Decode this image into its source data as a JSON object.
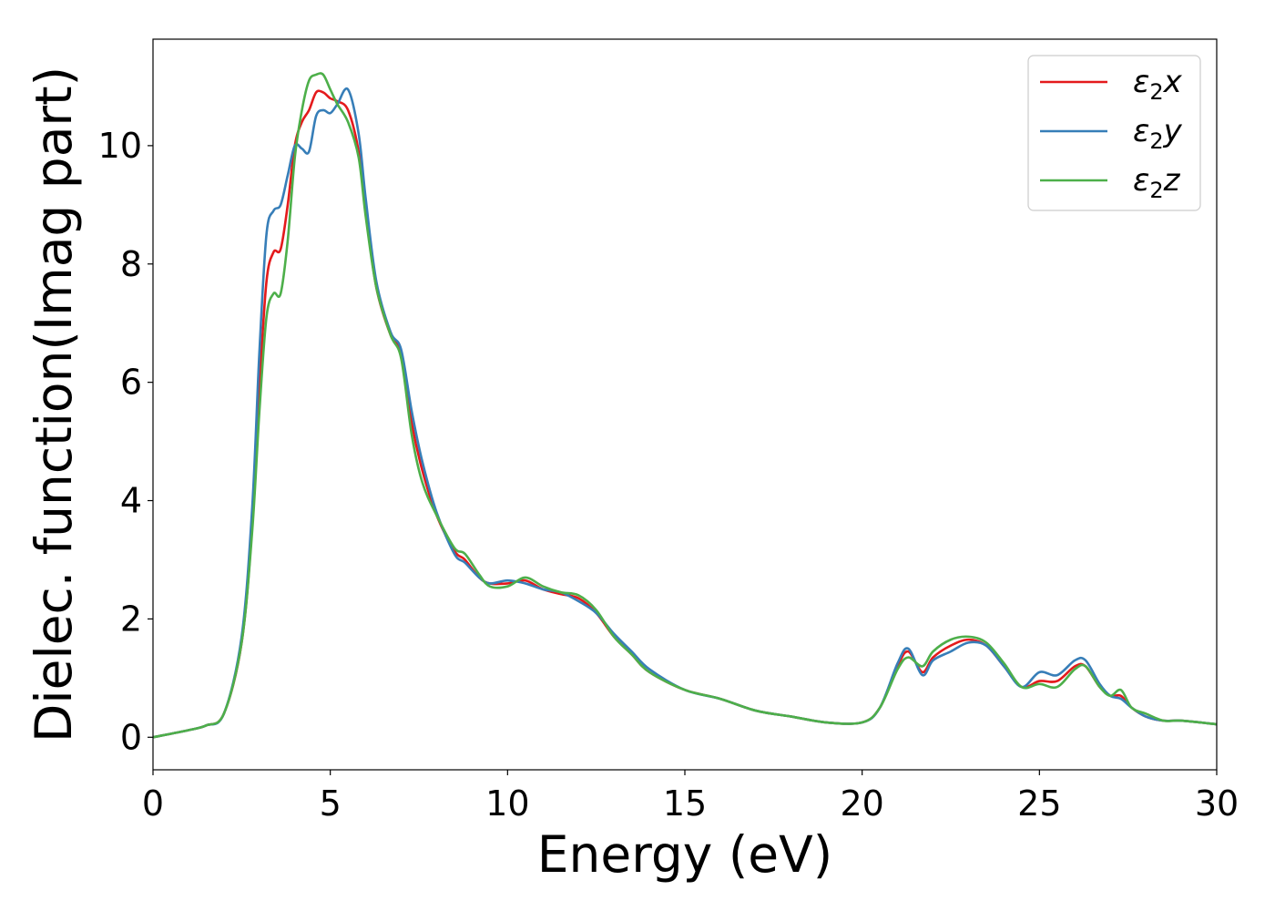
{
  "chart_data": {
    "type": "line",
    "xlabel": "Energy (eV)",
    "ylabel": "Dielec. function(Imag part)",
    "xlim": [
      0,
      30
    ],
    "ylim": [
      -0.55,
      11.8
    ],
    "xticks": [
      "0",
      "5",
      "10",
      "15",
      "20",
      "25",
      "30"
    ],
    "yticks": [
      "0",
      "2",
      "4",
      "6",
      "8",
      "10"
    ],
    "grid": false,
    "legend_position": "top-right",
    "series": [
      {
        "name": "ε2x",
        "legend": {
          "base": "ε",
          "sub": "2",
          "var": "x"
        },
        "color": "#e41a1c",
        "points": [
          [
            0,
            0
          ],
          [
            1,
            0.12
          ],
          [
            1.5,
            0.2
          ],
          [
            2,
            0.4
          ],
          [
            2.5,
            1.6
          ],
          [
            2.8,
            3.6
          ],
          [
            3.0,
            5.9
          ],
          [
            3.2,
            7.7
          ],
          [
            3.4,
            8.2
          ],
          [
            3.6,
            8.25
          ],
          [
            3.8,
            9.0
          ],
          [
            4.0,
            10.0
          ],
          [
            4.2,
            10.4
          ],
          [
            4.4,
            10.6
          ],
          [
            4.6,
            10.9
          ],
          [
            4.8,
            10.9
          ],
          [
            5.0,
            10.8
          ],
          [
            5.2,
            10.75
          ],
          [
            5.5,
            10.6
          ],
          [
            5.8,
            9.9
          ],
          [
            6.0,
            8.9
          ],
          [
            6.3,
            7.6
          ],
          [
            6.7,
            6.8
          ],
          [
            7.0,
            6.5
          ],
          [
            7.3,
            5.3
          ],
          [
            7.6,
            4.5
          ],
          [
            8.0,
            3.75
          ],
          [
            8.5,
            3.15
          ],
          [
            8.8,
            3.0
          ],
          [
            9.2,
            2.7
          ],
          [
            9.5,
            2.6
          ],
          [
            10.0,
            2.6
          ],
          [
            10.5,
            2.65
          ],
          [
            11.0,
            2.5
          ],
          [
            11.5,
            2.42
          ],
          [
            12.0,
            2.35
          ],
          [
            12.5,
            2.1
          ],
          [
            13.0,
            1.7
          ],
          [
            13.5,
            1.4
          ],
          [
            14.0,
            1.1
          ],
          [
            15.0,
            0.8
          ],
          [
            16.0,
            0.65
          ],
          [
            17.0,
            0.45
          ],
          [
            18.0,
            0.35
          ],
          [
            19.0,
            0.25
          ],
          [
            20.0,
            0.25
          ],
          [
            20.5,
            0.5
          ],
          [
            21.0,
            1.2
          ],
          [
            21.3,
            1.45
          ],
          [
            21.7,
            1.1
          ],
          [
            22.0,
            1.35
          ],
          [
            22.5,
            1.55
          ],
          [
            23.0,
            1.65
          ],
          [
            23.5,
            1.55
          ],
          [
            24.0,
            1.2
          ],
          [
            24.5,
            0.85
          ],
          [
            25.0,
            0.95
          ],
          [
            25.5,
            0.95
          ],
          [
            26.0,
            1.2
          ],
          [
            26.3,
            1.2
          ],
          [
            26.7,
            0.85
          ],
          [
            27.0,
            0.7
          ],
          [
            27.3,
            0.7
          ],
          [
            27.6,
            0.5
          ],
          [
            28.0,
            0.35
          ],
          [
            28.5,
            0.28
          ],
          [
            29.0,
            0.28
          ],
          [
            30.0,
            0.22
          ]
        ]
      },
      {
        "name": "ε2y",
        "legend": {
          "base": "ε",
          "sub": "2",
          "var": "y"
        },
        "color": "#377eb8",
        "points": [
          [
            0,
            0
          ],
          [
            1,
            0.12
          ],
          [
            1.5,
            0.2
          ],
          [
            2,
            0.4
          ],
          [
            2.5,
            1.7
          ],
          [
            2.8,
            3.9
          ],
          [
            3.0,
            6.5
          ],
          [
            3.2,
            8.5
          ],
          [
            3.4,
            8.9
          ],
          [
            3.6,
            9.0
          ],
          [
            3.8,
            9.5
          ],
          [
            4.0,
            10.0
          ],
          [
            4.2,
            9.95
          ],
          [
            4.4,
            9.9
          ],
          [
            4.6,
            10.5
          ],
          [
            4.8,
            10.6
          ],
          [
            5.0,
            10.55
          ],
          [
            5.2,
            10.7
          ],
          [
            5.5,
            10.95
          ],
          [
            5.8,
            10.2
          ],
          [
            6.0,
            9.1
          ],
          [
            6.3,
            7.7
          ],
          [
            6.7,
            6.85
          ],
          [
            7.0,
            6.55
          ],
          [
            7.3,
            5.5
          ],
          [
            7.6,
            4.65
          ],
          [
            8.0,
            3.8
          ],
          [
            8.5,
            3.1
          ],
          [
            8.8,
            2.95
          ],
          [
            9.2,
            2.7
          ],
          [
            9.5,
            2.6
          ],
          [
            10.0,
            2.65
          ],
          [
            10.5,
            2.6
          ],
          [
            11.0,
            2.5
          ],
          [
            11.5,
            2.45
          ],
          [
            12.0,
            2.3
          ],
          [
            12.5,
            2.1
          ],
          [
            13.0,
            1.75
          ],
          [
            13.5,
            1.45
          ],
          [
            14.0,
            1.15
          ],
          [
            15.0,
            0.8
          ],
          [
            16.0,
            0.65
          ],
          [
            17.0,
            0.45
          ],
          [
            18.0,
            0.35
          ],
          [
            19.0,
            0.25
          ],
          [
            20.0,
            0.25
          ],
          [
            20.5,
            0.5
          ],
          [
            21.0,
            1.25
          ],
          [
            21.3,
            1.5
          ],
          [
            21.7,
            1.05
          ],
          [
            22.0,
            1.3
          ],
          [
            22.5,
            1.45
          ],
          [
            23.0,
            1.6
          ],
          [
            23.5,
            1.55
          ],
          [
            24.0,
            1.2
          ],
          [
            24.5,
            0.85
          ],
          [
            25.0,
            1.1
          ],
          [
            25.5,
            1.05
          ],
          [
            26.0,
            1.3
          ],
          [
            26.3,
            1.3
          ],
          [
            26.7,
            0.9
          ],
          [
            27.0,
            0.7
          ],
          [
            27.3,
            0.65
          ],
          [
            27.6,
            0.5
          ],
          [
            28.0,
            0.35
          ],
          [
            28.5,
            0.28
          ],
          [
            29.0,
            0.28
          ],
          [
            30.0,
            0.22
          ]
        ]
      },
      {
        "name": "ε2z",
        "legend": {
          "base": "ε",
          "sub": "2",
          "var": "z"
        },
        "color": "#4daf4a",
        "points": [
          [
            0,
            0
          ],
          [
            1,
            0.12
          ],
          [
            1.5,
            0.2
          ],
          [
            2,
            0.4
          ],
          [
            2.5,
            1.6
          ],
          [
            2.8,
            3.5
          ],
          [
            3.0,
            5.5
          ],
          [
            3.2,
            7.1
          ],
          [
            3.4,
            7.5
          ],
          [
            3.6,
            7.5
          ],
          [
            3.8,
            8.4
          ],
          [
            4.0,
            9.8
          ],
          [
            4.2,
            10.6
          ],
          [
            4.4,
            11.1
          ],
          [
            4.6,
            11.2
          ],
          [
            4.8,
            11.2
          ],
          [
            5.0,
            10.95
          ],
          [
            5.2,
            10.7
          ],
          [
            5.5,
            10.4
          ],
          [
            5.8,
            9.8
          ],
          [
            6.0,
            8.8
          ],
          [
            6.3,
            7.6
          ],
          [
            6.7,
            6.8
          ],
          [
            7.0,
            6.4
          ],
          [
            7.3,
            5.1
          ],
          [
            7.6,
            4.3
          ],
          [
            8.0,
            3.75
          ],
          [
            8.5,
            3.2
          ],
          [
            8.8,
            3.1
          ],
          [
            9.2,
            2.75
          ],
          [
            9.5,
            2.55
          ],
          [
            10.0,
            2.55
          ],
          [
            10.5,
            2.7
          ],
          [
            11.0,
            2.55
          ],
          [
            11.5,
            2.45
          ],
          [
            12.0,
            2.4
          ],
          [
            12.5,
            2.15
          ],
          [
            13.0,
            1.7
          ],
          [
            13.5,
            1.4
          ],
          [
            14.0,
            1.1
          ],
          [
            15.0,
            0.8
          ],
          [
            16.0,
            0.65
          ],
          [
            17.0,
            0.45
          ],
          [
            18.0,
            0.35
          ],
          [
            19.0,
            0.25
          ],
          [
            20.0,
            0.25
          ],
          [
            20.5,
            0.5
          ],
          [
            21.0,
            1.15
          ],
          [
            21.3,
            1.35
          ],
          [
            21.7,
            1.2
          ],
          [
            22.0,
            1.45
          ],
          [
            22.5,
            1.65
          ],
          [
            23.0,
            1.7
          ],
          [
            23.5,
            1.6
          ],
          [
            24.0,
            1.25
          ],
          [
            24.5,
            0.85
          ],
          [
            25.0,
            0.9
          ],
          [
            25.5,
            0.85
          ],
          [
            26.0,
            1.15
          ],
          [
            26.3,
            1.2
          ],
          [
            26.7,
            0.85
          ],
          [
            27.0,
            0.7
          ],
          [
            27.3,
            0.8
          ],
          [
            27.6,
            0.5
          ],
          [
            28.0,
            0.4
          ],
          [
            28.5,
            0.28
          ],
          [
            29.0,
            0.28
          ],
          [
            30.0,
            0.22
          ]
        ]
      }
    ]
  }
}
